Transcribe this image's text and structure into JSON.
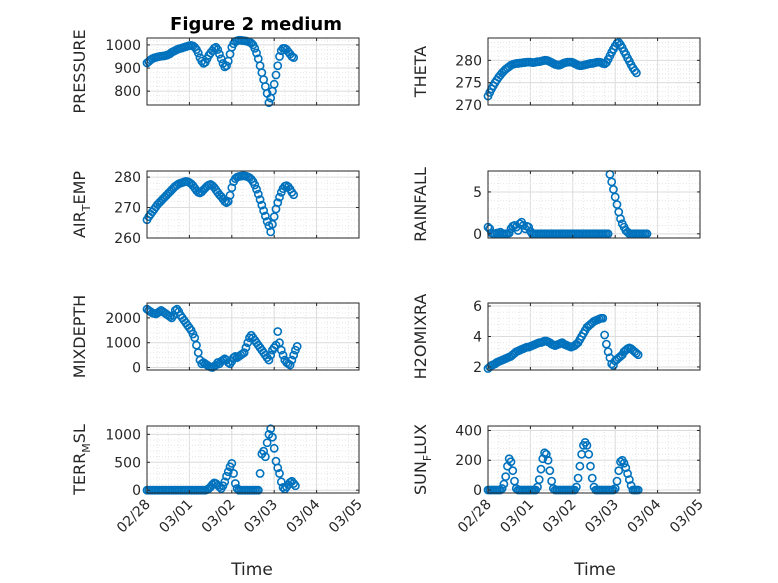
{
  "figure": {
    "title": "Figure 2 medium",
    "xlabel": "Time",
    "xtick_labels": [
      "02/28",
      "03/01",
      "03/02",
      "03/03",
      "03/04",
      "03/05"
    ],
    "marker_color": "#0072BD"
  },
  "chart_data": [
    {
      "type": "scatter",
      "ylabel": "PRESSURE",
      "xlim": [
        "02/28",
        "03/05"
      ],
      "ylim": [
        740,
        1030
      ],
      "yticks": [
        800,
        900,
        1000
      ],
      "grid": true,
      "x_start": "02/28",
      "x_step_days": 0.04167,
      "y": [
        922,
        928,
        935,
        940,
        944,
        946,
        948,
        950,
        951,
        952,
        953,
        955,
        958,
        962,
        968,
        972,
        976,
        980,
        983,
        985,
        987,
        990,
        992,
        995,
        997,
        998,
        996,
        990,
        980,
        965,
        945,
        930,
        920,
        925,
        940,
        955,
        965,
        975,
        985,
        990,
        980,
        960,
        940,
        920,
        905,
        910,
        930,
        960,
        990,
        1005,
        1015,
        1018,
        1020,
        1020,
        1019,
        1018,
        1017,
        1015,
        1012,
        1008,
        1000,
        985,
        965,
        940,
        910,
        880,
        850,
        820,
        790,
        750,
        770,
        800,
        830,
        870,
        910,
        950,
        975,
        985,
        985,
        980,
        970,
        960,
        950,
        945
      ]
    },
    {
      "type": "scatter",
      "ylabel": "THETA",
      "xlim": [
        "02/28",
        "03/05"
      ],
      "ylim": [
        270,
        285
      ],
      "yticks": [
        270,
        275,
        280
      ],
      "grid": true,
      "x_start": "02/28",
      "x_step_days": 0.04167,
      "y": [
        272,
        272.8,
        273.6,
        274.3,
        275,
        275.6,
        276.2,
        276.7,
        277.2,
        277.6,
        278,
        278.3,
        278.6,
        278.9,
        279.1,
        279.2,
        279.3,
        279.3,
        279.4,
        279.4,
        279.5,
        279.5,
        279.6,
        279.6,
        279.6,
        279.5,
        279.5,
        279.6,
        279.7,
        279.7,
        279.8,
        279.9,
        280,
        280,
        279.9,
        279.7,
        279.5,
        279.3,
        279.1,
        279,
        278.9,
        279,
        279.2,
        279.4,
        279.5,
        279.6,
        279.6,
        279.6,
        279.5,
        279.3,
        279.1,
        278.9,
        278.8,
        278.8,
        278.9,
        279,
        279.1,
        279.2,
        279.3,
        279.3,
        279.4,
        279.5,
        279.6,
        279.6,
        279.5,
        279.3,
        279.2,
        279.5,
        280.2,
        281,
        281.8,
        282.5,
        283.2,
        283.8,
        284,
        283.5,
        282.8,
        282,
        281.3,
        280.5,
        279.8,
        279,
        278.3,
        277.7,
        277.2
      ]
    },
    {
      "type": "scatter",
      "ylabel": "AIR_TEMP",
      "xlim": [
        "02/28",
        "03/05"
      ],
      "ylim": [
        260,
        282
      ],
      "yticks": [
        260,
        270,
        280
      ],
      "grid": true,
      "x_start": "02/28",
      "x_step_days": 0.04167,
      "y": [
        266,
        267,
        267.8,
        268.6,
        269.4,
        270.2,
        271,
        271.6,
        272.2,
        272.8,
        273.4,
        274,
        274.6,
        275.2,
        275.8,
        276.4,
        277,
        277.4,
        277.8,
        278,
        278.2,
        278.4,
        278.6,
        278.5,
        278.2,
        277.8,
        277.2,
        276.4,
        275.6,
        275,
        274.8,
        275.2,
        275.8,
        276.4,
        277,
        277.4,
        277.6,
        277.2,
        276.6,
        275.8,
        275,
        274.2,
        273.6,
        272.8,
        272,
        271.6,
        272,
        274,
        276.5,
        278.5,
        279.5,
        280,
        280.2,
        280.3,
        280.4,
        280.4,
        280.3,
        280.1,
        279.8,
        279.3,
        278.5,
        277.4,
        276,
        274.4,
        272.6,
        270.8,
        269,
        267.2,
        265.4,
        264,
        262,
        264.5,
        267,
        269.5,
        271.6,
        273.4,
        275,
        276.2,
        277,
        277.2,
        276.8,
        276,
        275,
        274.2
      ]
    },
    {
      "type": "scatter",
      "ylabel": "RAINFALL",
      "xlim": [
        "02/28",
        "03/05"
      ],
      "ylim": [
        -0.5,
        7.5
      ],
      "yticks": [
        0,
        5
      ],
      "grid": true,
      "x_start": "02/28",
      "x_step_days": 0.04167,
      "y": [
        0.8,
        0.6,
        0.1,
        0,
        0,
        0.1,
        0,
        0.2,
        0,
        0,
        0,
        0,
        0.1,
        0.6,
        0.9,
        1,
        0.8,
        0.4,
        1.2,
        1.4,
        1,
        0.6,
        0.9,
        0.8,
        0.3,
        0,
        0,
        0,
        0,
        0,
        0,
        0,
        0,
        0,
        0,
        0,
        0,
        0,
        0,
        0,
        0,
        0,
        0,
        0,
        0,
        0,
        0,
        0,
        0,
        0,
        0,
        0,
        0,
        0,
        0,
        0,
        0,
        0,
        0,
        0,
        0,
        0,
        0,
        0,
        0,
        0,
        0,
        0,
        0,
        7.1,
        6.2,
        5.3,
        4.4,
        3.5,
        2.6,
        1.8,
        1.2,
        0.8,
        0.4,
        0.2,
        0,
        0,
        0,
        0,
        0,
        0,
        0,
        0,
        0,
        0,
        0
      ]
    },
    {
      "type": "scatter",
      "ylabel": "MIXDEPTH",
      "xlim": [
        "02/28",
        "03/05"
      ],
      "ylim": [
        -100,
        2600
      ],
      "yticks": [
        0,
        1000,
        2000
      ],
      "grid": true,
      "x_start": "02/28",
      "x_step_days": 0.04167,
      "y": [
        2350,
        2300,
        2250,
        2200,
        2180,
        2160,
        2200,
        2250,
        2300,
        2250,
        2200,
        2150,
        2100,
        2050,
        2000,
        2100,
        2300,
        2350,
        2250,
        2100,
        2000,
        1900,
        1800,
        1700,
        1600,
        1500,
        1350,
        1200,
        900,
        600,
        300,
        150,
        200,
        150,
        100,
        50,
        20,
        0,
        50,
        100,
        200,
        150,
        250,
        300,
        350,
        300,
        200,
        150,
        250,
        400,
        450,
        400,
        450,
        500,
        550,
        600,
        800,
        1000,
        1200,
        1300,
        1200,
        1100,
        1000,
        900,
        800,
        700,
        600,
        500,
        400,
        300,
        500,
        700,
        800,
        900,
        1450,
        1000,
        700,
        500,
        300,
        200,
        150,
        100,
        300,
        500,
        700,
        850
      ]
    },
    {
      "type": "scatter",
      "ylabel": "H2OMIXRA",
      "xlim": [
        "02/28",
        "03/05"
      ],
      "ylim": [
        1.8,
        6.2
      ],
      "yticks": [
        2,
        4,
        6
      ],
      "grid": true,
      "x_start": "02/28",
      "x_step_days": 0.04167,
      "y": [
        1.9,
        2,
        2.1,
        2.15,
        2.2,
        2.3,
        2.35,
        2.4,
        2.45,
        2.5,
        2.55,
        2.6,
        2.65,
        2.7,
        2.8,
        2.9,
        3,
        3.05,
        3.1,
        3.15,
        3.2,
        3.25,
        3.3,
        3.3,
        3.35,
        3.4,
        3.45,
        3.5,
        3.55,
        3.6,
        3.6,
        3.65,
        3.7,
        3.7,
        3.65,
        3.6,
        3.5,
        3.45,
        3.4,
        3.45,
        3.5,
        3.55,
        3.6,
        3.5,
        3.45,
        3.4,
        3.35,
        3.3,
        3.35,
        3.4,
        3.5,
        3.6,
        3.8,
        4,
        4.2,
        4.4,
        4.6,
        4.7,
        4.8,
        4.9,
        5,
        5.05,
        5.1,
        5.15,
        5.2,
        5.2,
        4.1,
        3.5,
        3,
        2.6,
        2.2,
        2.1,
        2.4,
        2.5,
        2.6,
        2.7,
        2.8,
        3,
        3.1,
        3.2,
        3.25,
        3.2,
        3.1,
        3,
        2.9,
        2.8
      ]
    },
    {
      "type": "scatter",
      "ylabel": "TERR_MSL",
      "xlim": [
        "02/28",
        "03/05"
      ],
      "ylim": [
        -50,
        1150
      ],
      "yticks": [
        0,
        500,
        1000
      ],
      "grid": true,
      "x_start": "02/28",
      "x_step_days": 0.04167,
      "y": [
        0,
        0,
        0,
        0,
        0,
        0,
        0,
        0,
        0,
        0,
        0,
        0,
        0,
        0,
        0,
        0,
        0,
        0,
        0,
        0,
        0,
        0,
        0,
        0,
        0,
        0,
        0,
        0,
        0,
        0,
        0,
        0,
        0,
        0,
        10,
        30,
        60,
        100,
        130,
        120,
        90,
        60,
        30,
        80,
        150,
        250,
        330,
        420,
        480,
        300,
        120,
        30,
        0,
        0,
        0,
        0,
        0,
        0,
        0,
        0,
        0,
        0,
        0,
        0,
        300,
        650,
        700,
        600,
        850,
        1000,
        1100,
        950,
        750,
        520,
        400,
        300,
        150,
        50,
        20,
        60,
        100,
        140,
        160,
        120,
        80
      ]
    },
    {
      "type": "scatter",
      "ylabel": "SUN_FLUX",
      "xlim": [
        "02/28",
        "03/05"
      ],
      "ylim": [
        -20,
        430
      ],
      "yticks": [
        0,
        200,
        400
      ],
      "grid": true,
      "x_start": "02/28",
      "x_step_days": 0.04167,
      "y": [
        0,
        0,
        0,
        0,
        0,
        0,
        0,
        0,
        10,
        40,
        90,
        160,
        210,
        190,
        130,
        60,
        10,
        0,
        0,
        0,
        0,
        0,
        0,
        0,
        0,
        0,
        0,
        0,
        20,
        70,
        140,
        210,
        250,
        240,
        200,
        130,
        60,
        10,
        0,
        0,
        0,
        0,
        0,
        0,
        0,
        0,
        0,
        0,
        0,
        0,
        20,
        80,
        160,
        240,
        300,
        320,
        300,
        240,
        160,
        80,
        20,
        0,
        0,
        0,
        0,
        0,
        0,
        0,
        0,
        0,
        0,
        0,
        10,
        60,
        130,
        190,
        200,
        180,
        150,
        110,
        70,
        30,
        0,
        0,
        0,
        0
      ]
    }
  ]
}
